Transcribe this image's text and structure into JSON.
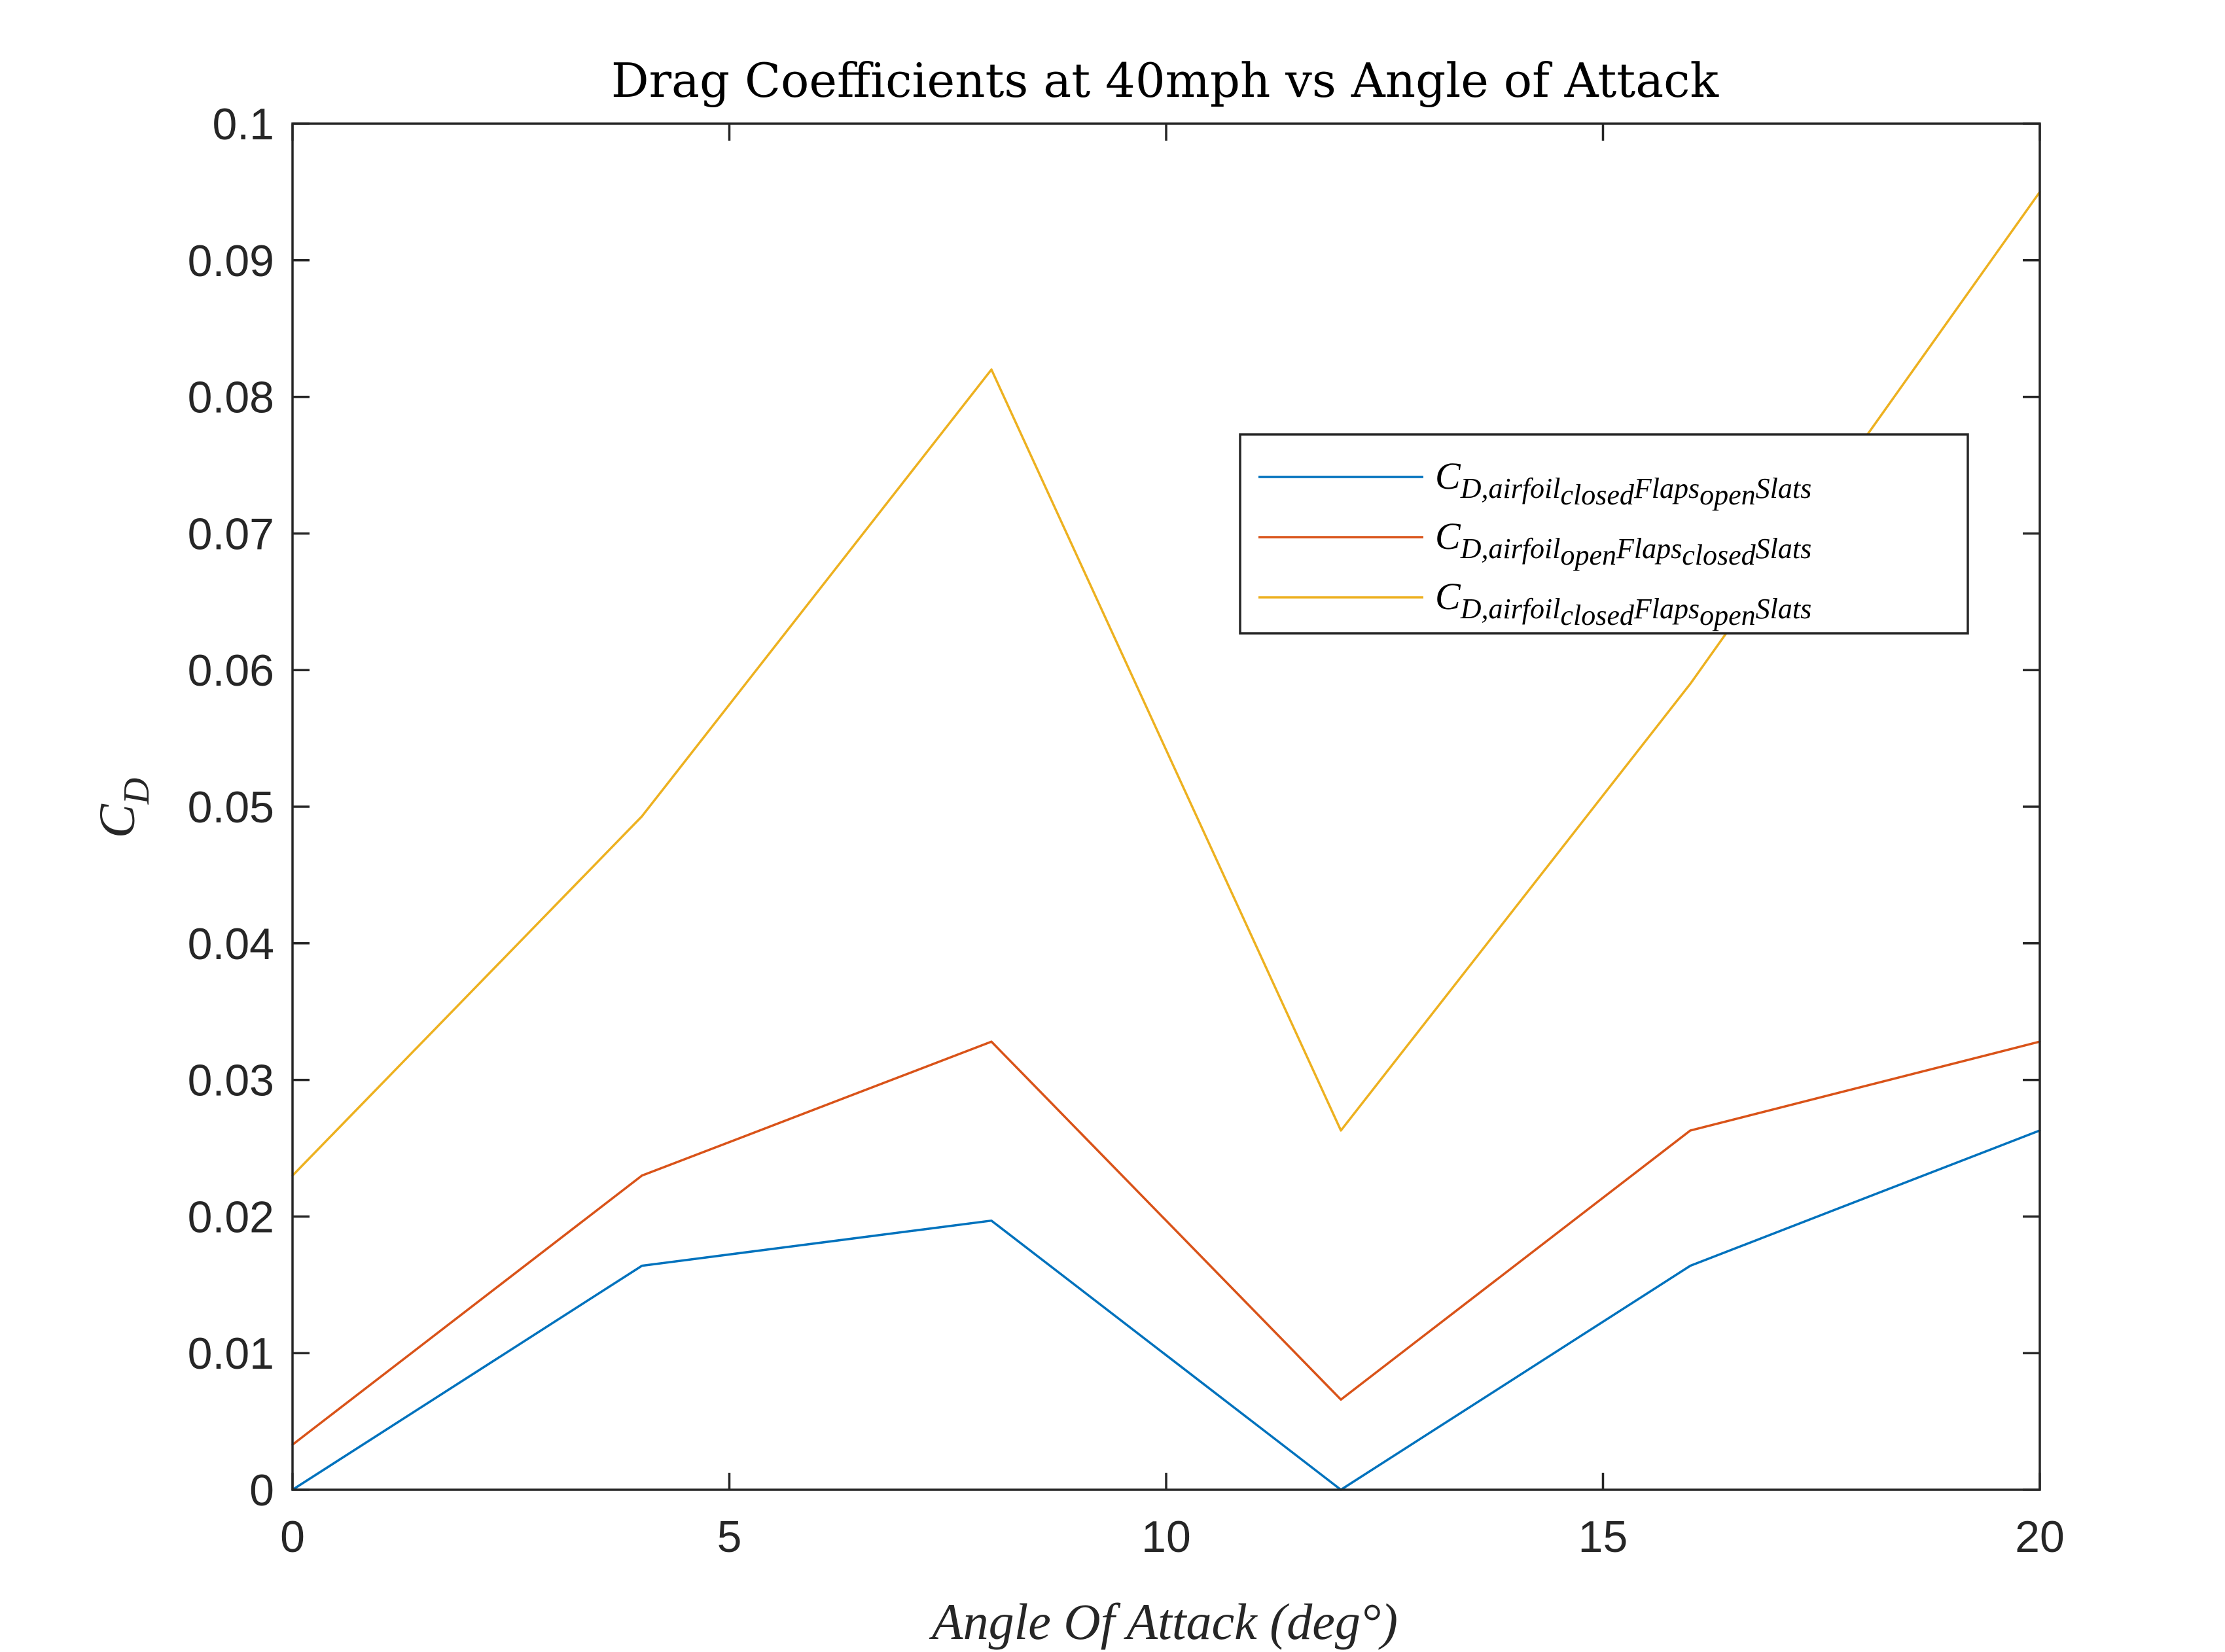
{
  "chart_data": {
    "type": "line",
    "title": "Drag Coefficients  at  40mph  vs  Angle  of  Attack",
    "xlabel": "Angle Of Attack (deg°)",
    "ylabel": {
      "main": "C",
      "sub": "D"
    },
    "xlim": [
      0,
      20
    ],
    "ylim": [
      0,
      0.1
    ],
    "xticks": [
      0,
      5,
      10,
      15,
      20
    ],
    "xtick_labels": [
      "0",
      "5",
      "10",
      "15",
      "20"
    ],
    "yticks": [
      0,
      0.01,
      0.02,
      0.03,
      0.04,
      0.05,
      0.06,
      0.07,
      0.08,
      0.09,
      0.1
    ],
    "ytick_labels": [
      "0",
      "0.01",
      "0.02",
      "0.03",
      "0.04",
      "0.05",
      "0.06",
      "0.07",
      "0.08",
      "0.09",
      "0.1"
    ],
    "grid": false,
    "legend_position": "top-right",
    "x": [
      0,
      4,
      8,
      12,
      16,
      20
    ],
    "series": [
      {
        "name_main": "C",
        "name_sub": "D,airfoil",
        "name_sub2": "closed",
        "name_mid": "Flaps",
        "name_sub3": "open",
        "name_tail": "Slats",
        "color": "#0072BD",
        "values": [
          0.0,
          0.0164,
          0.0197,
          0.0,
          0.0164,
          0.0263
        ]
      },
      {
        "name_main": "C",
        "name_sub": "D,airfoil",
        "name_sub2": "open",
        "name_mid": "Flaps",
        "name_sub3": "closed",
        "name_tail": "Slats",
        "color": "#D95319",
        "values": [
          0.0033,
          0.023,
          0.0328,
          0.0066,
          0.0263,
          0.0328
        ]
      },
      {
        "name_main": "C",
        "name_sub": "D,airfoil",
        "name_sub2": "closed",
        "name_mid": "Flaps",
        "name_sub3": "open",
        "name_tail": "Slats",
        "color": "#EDB120",
        "values": [
          0.023,
          0.0493,
          0.082,
          0.0263,
          0.059,
          0.095
        ]
      }
    ]
  }
}
